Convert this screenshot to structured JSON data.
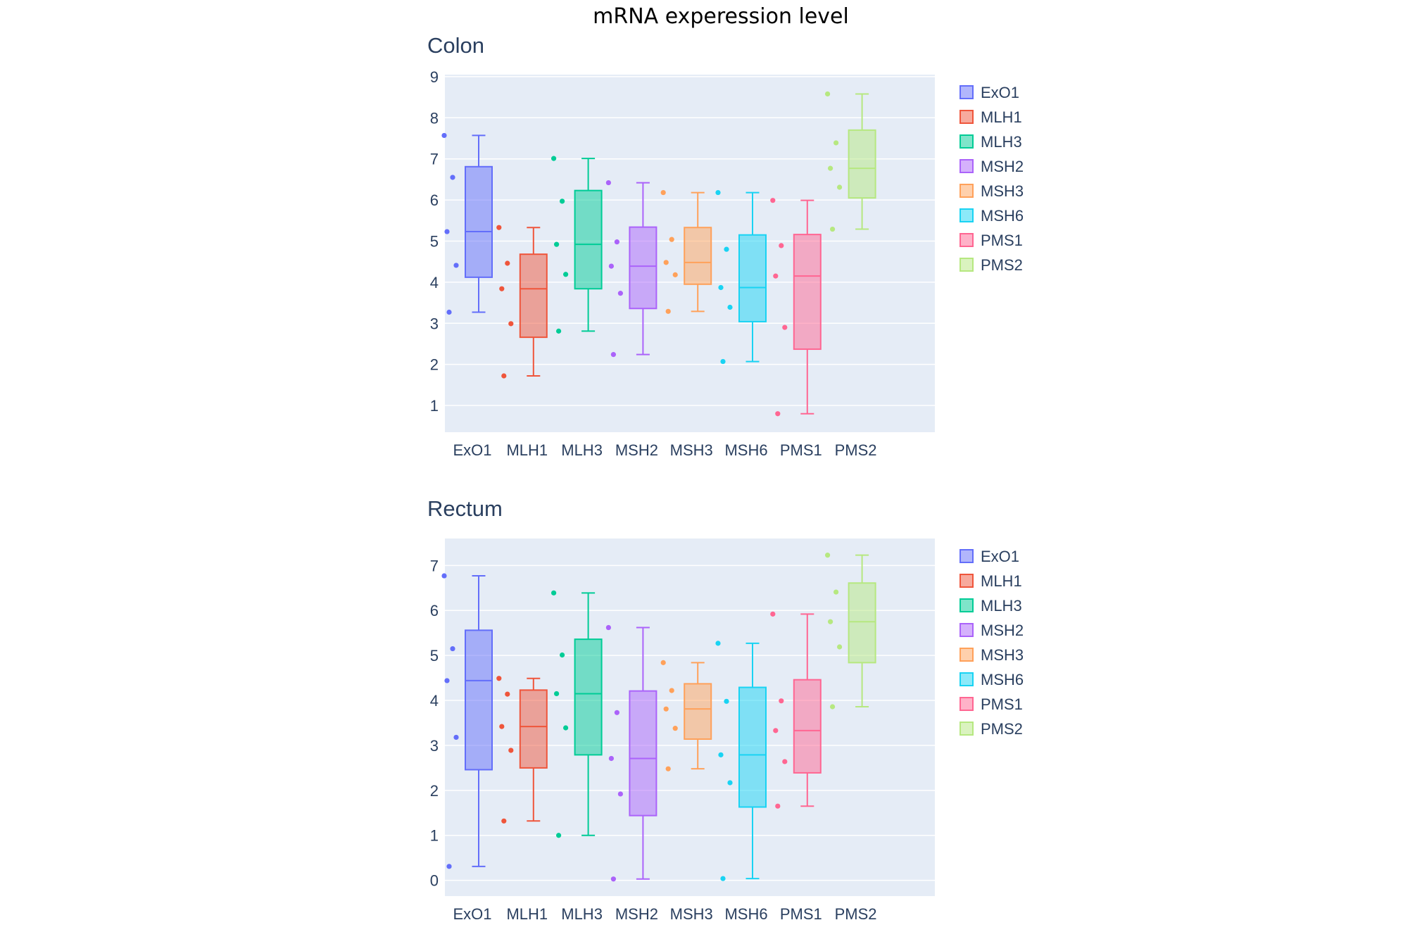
{
  "figure": {
    "title": "mRNA experession level"
  },
  "chart_data": [
    {
      "type": "box",
      "title": "Colon",
      "xlabel": "",
      "ylabel": "",
      "ylim": [
        0.35,
        9.05
      ],
      "yticks": [
        1,
        2,
        3,
        4,
        5,
        6,
        7,
        8,
        9
      ],
      "categories": [
        "ExO1",
        "MLH1",
        "MLH3",
        "MSH2",
        "MSH3",
        "MSH6",
        "PMS1",
        "PMS2"
      ],
      "grid": true,
      "legend_position": "right",
      "points_shown": "all, offset to the left of each box",
      "series": [
        {
          "name": "ExO1",
          "color": "#636efa",
          "points": [
            7.57,
            6.55,
            5.23,
            4.41,
            3.27
          ],
          "q1": 4.12,
          "median": 5.23,
          "q3": 6.81,
          "whisker_low": 3.27,
          "whisker_high": 7.57
        },
        {
          "name": "MLH1",
          "color": "#ef553b",
          "points": [
            5.33,
            4.46,
            3.84,
            2.99,
            1.72
          ],
          "q1": 2.66,
          "median": 3.84,
          "q3": 4.68,
          "whisker_low": 1.72,
          "whisker_high": 5.33
        },
        {
          "name": "MLH3",
          "color": "#00cc96",
          "points": [
            7.01,
            5.97,
            4.92,
            4.19,
            2.81
          ],
          "q1": 3.84,
          "median": 4.92,
          "q3": 6.23,
          "whisker_low": 2.81,
          "whisker_high": 7.01
        },
        {
          "name": "MSH2",
          "color": "#ab63fa",
          "points": [
            6.42,
            4.98,
            4.39,
            3.73,
            2.24
          ],
          "q1": 3.36,
          "median": 4.39,
          "q3": 5.34,
          "whisker_low": 2.24,
          "whisker_high": 6.42
        },
        {
          "name": "MSH3",
          "color": "#ffa15a",
          "points": [
            6.18,
            5.04,
            4.48,
            4.18,
            3.29
          ],
          "q1": 3.95,
          "median": 4.48,
          "q3": 5.33,
          "whisker_low": 3.29,
          "whisker_high": 6.18
        },
        {
          "name": "MSH6",
          "color": "#19d3f3",
          "points": [
            6.18,
            4.8,
            3.87,
            3.39,
            2.07
          ],
          "q1": 3.04,
          "median": 3.87,
          "q3": 5.15,
          "whisker_low": 2.07,
          "whisker_high": 6.18
        },
        {
          "name": "PMS1",
          "color": "#ff6692",
          "points": [
            5.99,
            4.89,
            4.15,
            2.9,
            0.8
          ],
          "q1": 2.37,
          "median": 4.15,
          "q3": 5.16,
          "whisker_low": 0.8,
          "whisker_high": 5.99
        },
        {
          "name": "PMS2",
          "color": "#b6e880",
          "points": [
            8.58,
            7.39,
            6.77,
            6.31,
            5.29
          ],
          "q1": 6.05,
          "median": 6.77,
          "q3": 7.7,
          "whisker_low": 5.29,
          "whisker_high": 8.58
        }
      ]
    },
    {
      "type": "box",
      "title": "Rectum",
      "xlabel": "",
      "ylabel": "",
      "ylim": [
        -0.35,
        7.6
      ],
      "yticks": [
        0,
        1,
        2,
        3,
        4,
        5,
        6,
        7
      ],
      "categories": [
        "ExO1",
        "MLH1",
        "MLH3",
        "MSH2",
        "MSH3",
        "MSH6",
        "PMS1",
        "PMS2"
      ],
      "grid": true,
      "legend_position": "right",
      "points_shown": "all, offset to the left of each box",
      "series": [
        {
          "name": "ExO1",
          "color": "#636efa",
          "points": [
            6.77,
            5.15,
            4.44,
            3.18,
            0.31
          ],
          "q1": 2.46,
          "median": 4.44,
          "q3": 5.56,
          "whisker_low": 0.31,
          "whisker_high": 6.77
        },
        {
          "name": "MLH1",
          "color": "#ef553b",
          "points": [
            4.49,
            4.14,
            3.42,
            2.89,
            1.32
          ],
          "q1": 2.5,
          "median": 3.42,
          "q3": 4.23,
          "whisker_low": 1.32,
          "whisker_high": 4.49
        },
        {
          "name": "MLH3",
          "color": "#00cc96",
          "points": [
            6.39,
            5.01,
            4.15,
            3.39,
            1.0
          ],
          "q1": 2.79,
          "median": 4.15,
          "q3": 5.36,
          "whisker_low": 1.0,
          "whisker_high": 6.39
        },
        {
          "name": "MSH2",
          "color": "#ab63fa",
          "points": [
            5.62,
            3.73,
            2.71,
            1.92,
            0.03
          ],
          "q1": 1.44,
          "median": 2.71,
          "q3": 4.21,
          "whisker_low": 0.03,
          "whisker_high": 5.62
        },
        {
          "name": "MSH3",
          "color": "#ffa15a",
          "points": [
            4.84,
            4.22,
            3.81,
            3.38,
            2.48
          ],
          "q1": 3.14,
          "median": 3.81,
          "q3": 4.37,
          "whisker_low": 2.48,
          "whisker_high": 4.84
        },
        {
          "name": "MSH6",
          "color": "#19d3f3",
          "points": [
            5.27,
            3.98,
            2.79,
            2.17,
            0.04
          ],
          "q1": 1.63,
          "median": 2.79,
          "q3": 4.29,
          "whisker_low": 0.04,
          "whisker_high": 5.27
        },
        {
          "name": "PMS1",
          "color": "#ff6692",
          "points": [
            5.92,
            3.99,
            3.33,
            2.64,
            1.65
          ],
          "q1": 2.39,
          "median": 3.33,
          "q3": 4.46,
          "whisker_low": 1.65,
          "whisker_high": 5.92
        },
        {
          "name": "PMS2",
          "color": "#b6e880",
          "points": [
            7.23,
            6.41,
            5.75,
            5.19,
            3.86
          ],
          "q1": 4.84,
          "median": 5.75,
          "q3": 6.61,
          "whisker_low": 3.86,
          "whisker_high": 7.23
        }
      ]
    }
  ]
}
